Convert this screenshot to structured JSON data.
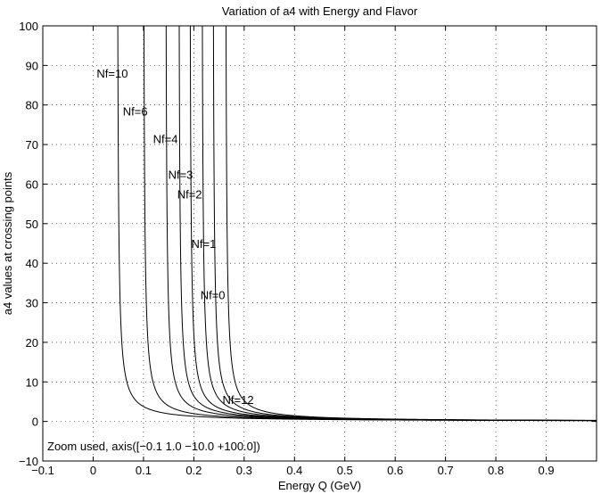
{
  "chart_data": {
    "type": "line",
    "title": "Variation of a4 with Energy and Flavor",
    "xlabel": "Energy Q (GeV)",
    "ylabel": "a4 values at crossing points",
    "xlim": [
      -0.1,
      1.0
    ],
    "ylim": [
      -10,
      100
    ],
    "grid": true,
    "x_ticks": [
      -0.1,
      0,
      0.1,
      0.2,
      0.3,
      0.4,
      0.5,
      0.6,
      0.7,
      0.8,
      0.9
    ],
    "x_tick_labels": [
      "−0.1",
      "0",
      "0.1",
      "0.2",
      "0.3",
      "0.4",
      "0.5",
      "0.6",
      "0.7",
      "0.8",
      "0.9"
    ],
    "y_ticks": [
      -10,
      0,
      10,
      20,
      30,
      40,
      50,
      60,
      70,
      80,
      90,
      100
    ],
    "y_tick_labels": [
      "−10",
      "0",
      "10",
      "20",
      "30",
      "40",
      "50",
      "60",
      "70",
      "80",
      "90",
      "100"
    ],
    "annotation": "Zoom used, axis([−0.1  1.0  −10.0  +100.0])",
    "series": [
      {
        "pole": 0.047,
        "label": "Nf=10",
        "label_x": 0.007,
        "label_y": 88
      },
      {
        "pole": 0.099,
        "label": "Nf=6",
        "label_x": 0.059,
        "label_y": 78.5
      },
      {
        "pole": 0.143,
        "label": "Nf=4",
        "label_x": 0.119,
        "label_y": 71.5
      },
      {
        "pole": 0.169,
        "label": "Nf=3",
        "label_x": 0.149,
        "label_y": 62.5
      },
      {
        "pole": 0.191,
        "label": "Nf=2",
        "label_x": 0.167,
        "label_y": 57.5
      },
      {
        "pole": 0.215,
        "label": "Nf=1",
        "label_x": 0.195,
        "label_y": 45
      },
      {
        "pole": 0.237,
        "label": "Nf=0",
        "label_x": 0.213,
        "label_y": 32
      },
      {
        "pole": 0.262,
        "label": "Nf=12",
        "label_x": 0.257,
        "label_y": 5.5
      }
    ]
  }
}
